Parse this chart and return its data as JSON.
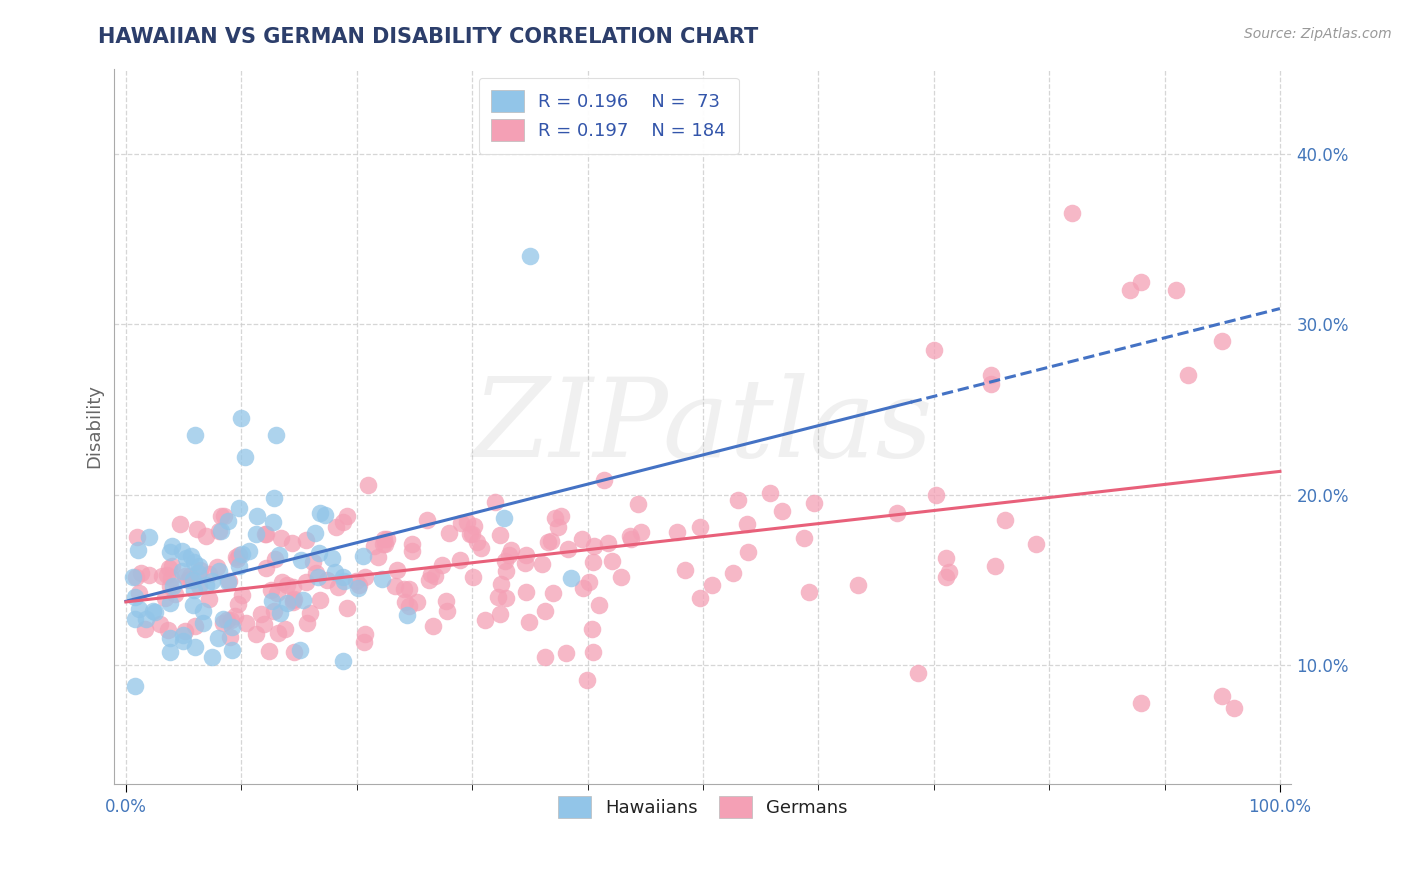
{
  "title": "HAWAIIAN VS GERMAN DISABILITY CORRELATION CHART",
  "source": "Source: ZipAtlas.com",
  "ylabel": "Disability",
  "xlim": [
    -0.01,
    1.01
  ],
  "ylim": [
    0.03,
    0.45
  ],
  "xtick_positions": [
    0.0,
    1.0
  ],
  "xtick_labels": [
    "0.0%",
    "100.0%"
  ],
  "ytick_positions": [
    0.1,
    0.2,
    0.3,
    0.4
  ],
  "ytick_labels": [
    "10.0%",
    "20.0%",
    "30.0%",
    "40.0%"
  ],
  "hawaiian_color": "#92C5E8",
  "german_color": "#F4A0B5",
  "hawaiian_line_color": "#4472C4",
  "german_line_color": "#E8607A",
  "hawaiian_R": 0.196,
  "hawaiian_N": 73,
  "german_R": 0.197,
  "german_N": 184,
  "watermark": "ZIPatlas",
  "background_color": "#ffffff",
  "grid_color": "#cccccc",
  "title_color": "#2c3e6b",
  "axis_label_color": "#666666",
  "tick_color": "#4477BB",
  "legend_text_color": "#3355aa",
  "source_color": "#999999"
}
